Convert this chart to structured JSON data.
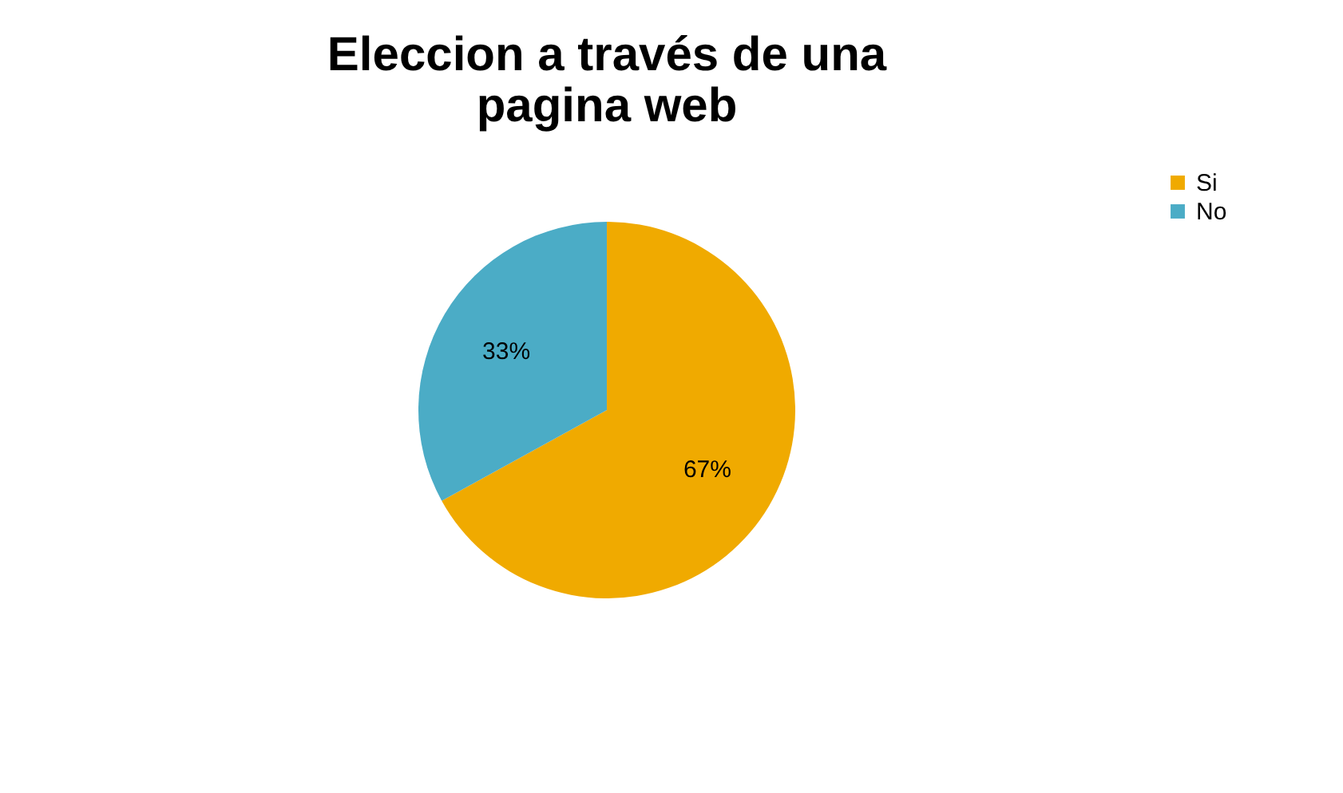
{
  "chart_data": {
    "type": "pie",
    "title": "Eleccion a través de una\npagina web",
    "categories": [
      "Si",
      "No"
    ],
    "values": [
      67,
      33
    ],
    "colors": [
      "#f0aa00",
      "#4bacc6"
    ],
    "value_labels": [
      "67%",
      "33%"
    ],
    "legend": "right"
  }
}
